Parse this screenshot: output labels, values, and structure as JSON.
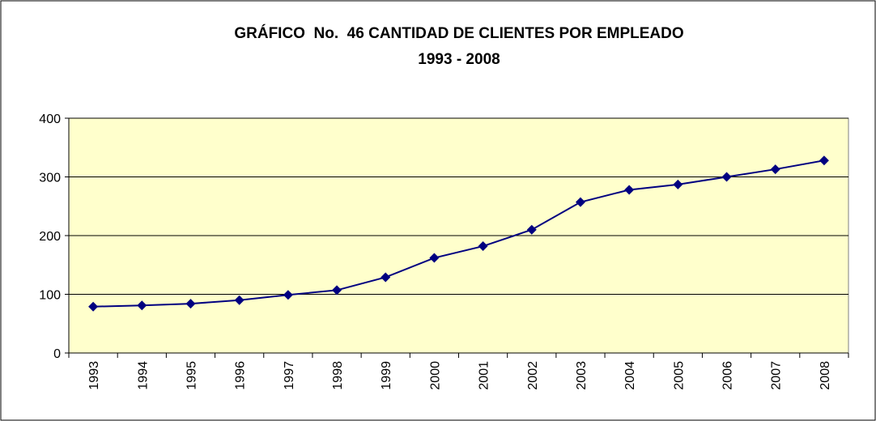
{
  "chart_data": {
    "type": "line",
    "title": "GRÁFICO  No.  46 CANTIDAD DE CLIENTES POR EMPLEADO",
    "subtitle": "1993 - 2008",
    "categories": [
      "1993",
      "1994",
      "1995",
      "1996",
      "1997",
      "1998",
      "1999",
      "2000",
      "2001",
      "2002",
      "2003",
      "2004",
      "2005",
      "2006",
      "2007",
      "2008"
    ],
    "series": [
      {
        "name": "Clientes por empleado",
        "color": "#000080",
        "values": [
          79,
          81,
          84,
          90,
          99,
          107,
          129,
          162,
          182,
          210,
          257,
          278,
          287,
          300,
          313,
          328
        ]
      }
    ],
    "ylim": [
      0,
      400
    ],
    "yticks": [
      0,
      100,
      200,
      300,
      400
    ],
    "grid": true,
    "plot_background": "#ffffcc"
  }
}
